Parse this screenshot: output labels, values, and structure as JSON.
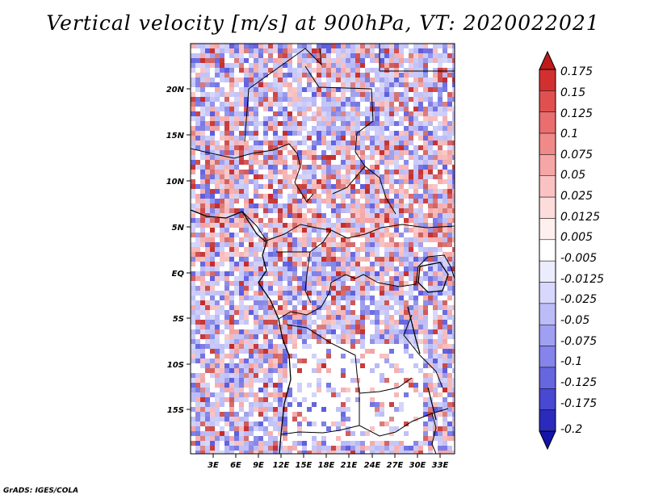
{
  "title": "Vertical velocity [m/s] at 900hPa, VT: 2020022021",
  "footer": "GrADS: IGES/COLA",
  "map": {
    "latitude_labels": [
      "20N",
      "15N",
      "10N",
      "5N",
      "EQ",
      "5S",
      "10S",
      "15S"
    ],
    "longitude_labels": [
      "3E",
      "6E",
      "9E",
      "12E",
      "15E",
      "18E",
      "21E",
      "24E",
      "27E",
      "30E",
      "33E"
    ]
  },
  "colorbar": {
    "labels": [
      "0.175",
      "0.15",
      "0.125",
      "0.1",
      "0.075",
      "0.05",
      "0.025",
      "0.0125",
      "0.005",
      "-0.005",
      "-0.0125",
      "-0.025",
      "-0.05",
      "-0.075",
      "-0.1",
      "-0.125",
      "-0.175",
      "-0.2"
    ],
    "colors": [
      "#c01a1a",
      "#d23030",
      "#e05050",
      "#ea6e6e",
      "#f08a8a",
      "#f6a6a6",
      "#fac2c2",
      "#fddcdc",
      "#fff0f0",
      "#ffffff",
      "#ececff",
      "#d8d8fe",
      "#bcbcf8",
      "#a0a0f2",
      "#8484ea",
      "#6666de",
      "#4848d0",
      "#2a2abc",
      "#1414a8"
    ]
  },
  "palette": {
    "strong_red": "#c42a2a",
    "light_red": "#f3a0a0",
    "strong_blue": "#5a5ade",
    "light_blue": "#b8b8f6",
    "white": "#ffffff"
  }
}
